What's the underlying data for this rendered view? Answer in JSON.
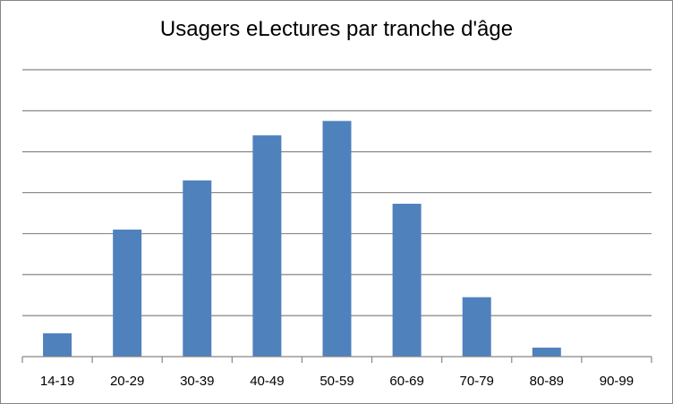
{
  "chart_data": {
    "type": "bar",
    "title": "Usagers eLectures par tranche d'âge",
    "xlabel": "",
    "ylabel": "",
    "categories": [
      "14-19",
      "20-29",
      "30-39",
      "40-49",
      "50-59",
      "60-69",
      "70-79",
      "80-89",
      "90-99"
    ],
    "values": [
      0.57,
      3.1,
      4.3,
      5.4,
      5.75,
      3.73,
      1.45,
      0.22,
      0
    ],
    "ylim": [
      0,
      7
    ],
    "y_gridlines": [
      1,
      2,
      3,
      4,
      5,
      6,
      7
    ],
    "y_tick_labels_shown": false,
    "grid": true,
    "legend": "none",
    "bar_color": "#4f81bd",
    "grid_color": "#868686"
  }
}
